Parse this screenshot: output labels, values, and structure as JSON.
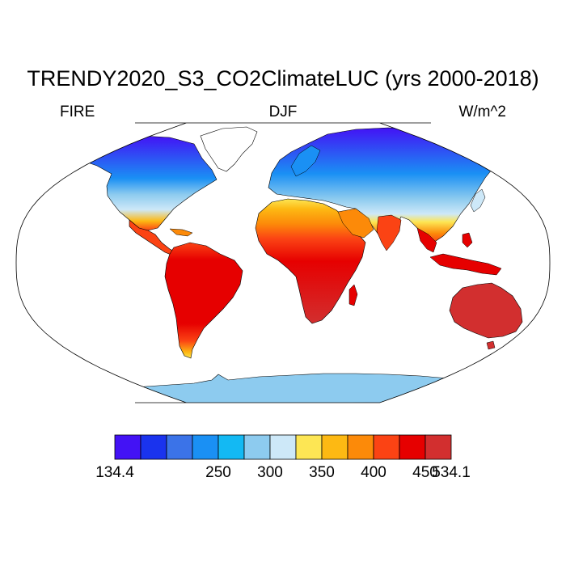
{
  "figure": {
    "title": "TRENDY2020_S3_CO2ClimateLUC (yrs 2000-2018)",
    "left_label": "FIRE",
    "center_label": "DJF",
    "right_label": "W/m^2"
  },
  "colorbar": {
    "colors": [
      "#4312f5",
      "#1a33ee",
      "#3b73e8",
      "#1a90f4",
      "#13b9f3",
      "#8dcbef",
      "#cde8f8",
      "#fde654",
      "#fdb913",
      "#fc8a09",
      "#fb4314",
      "#e60000",
      "#d22f2f"
    ],
    "labels": [
      "134.4",
      "",
      "250",
      "300",
      "350",
      "400",
      "450",
      "534.1"
    ]
  },
  "map": {
    "projection": "Robinson",
    "ocean_color": "#ffffff",
    "coastline_color": "#000000"
  }
}
